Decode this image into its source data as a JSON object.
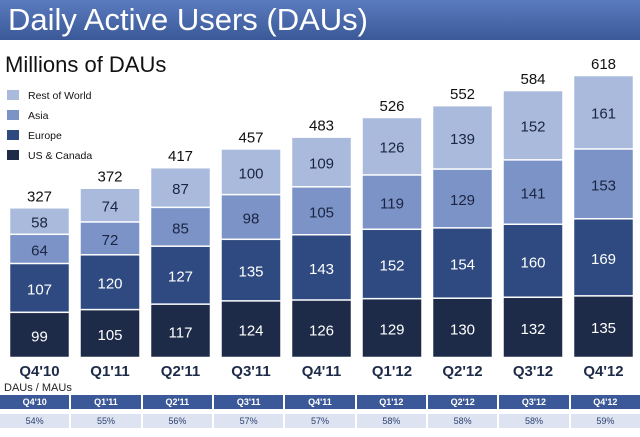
{
  "header": {
    "title": "Daily Active Users (DAUs)"
  },
  "subtitle": "Millions of DAUs",
  "chart_data": {
    "type": "bar",
    "stacked": true,
    "title": "Daily Active Users (DAUs)",
    "ylabel": "Millions of DAUs",
    "xlabel": "",
    "categories": [
      "Q4'10",
      "Q1'11",
      "Q2'11",
      "Q3'11",
      "Q4'11",
      "Q1'12",
      "Q2'12",
      "Q3'12",
      "Q4'12"
    ],
    "series": [
      {
        "name": "US & Canada",
        "color": "#1e2b48",
        "values": [
          99,
          105,
          117,
          124,
          126,
          129,
          130,
          132,
          135
        ]
      },
      {
        "name": "Europe",
        "color": "#2f4a80",
        "values": [
          107,
          120,
          127,
          135,
          143,
          152,
          154,
          160,
          169
        ]
      },
      {
        "name": "Asia",
        "color": "#7c93c8",
        "values": [
          64,
          72,
          85,
          98,
          105,
          119,
          129,
          141,
          153
        ]
      },
      {
        "name": "Rest of World",
        "color": "#a9badd",
        "values": [
          58,
          74,
          87,
          100,
          109,
          126,
          139,
          152,
          161
        ]
      }
    ],
    "totals": [
      327,
      372,
      417,
      457,
      483,
      526,
      552,
      584,
      618
    ],
    "ylim": [
      0,
      640
    ],
    "legend_position": "top-left",
    "legend_order": [
      "Rest of World",
      "Asia",
      "Europe",
      "US & Canada"
    ]
  },
  "mau_ratio": {
    "label": "DAUs / MAUs",
    "quarters": [
      "Q4'10",
      "Q1'11",
      "Q2'11",
      "Q3'11",
      "Q4'11",
      "Q1'12",
      "Q2'12",
      "Q3'12",
      "Q4'12"
    ],
    "values": [
      "54%",
      "55%",
      "56%",
      "57%",
      "57%",
      "58%",
      "58%",
      "58%",
      "59%"
    ]
  }
}
